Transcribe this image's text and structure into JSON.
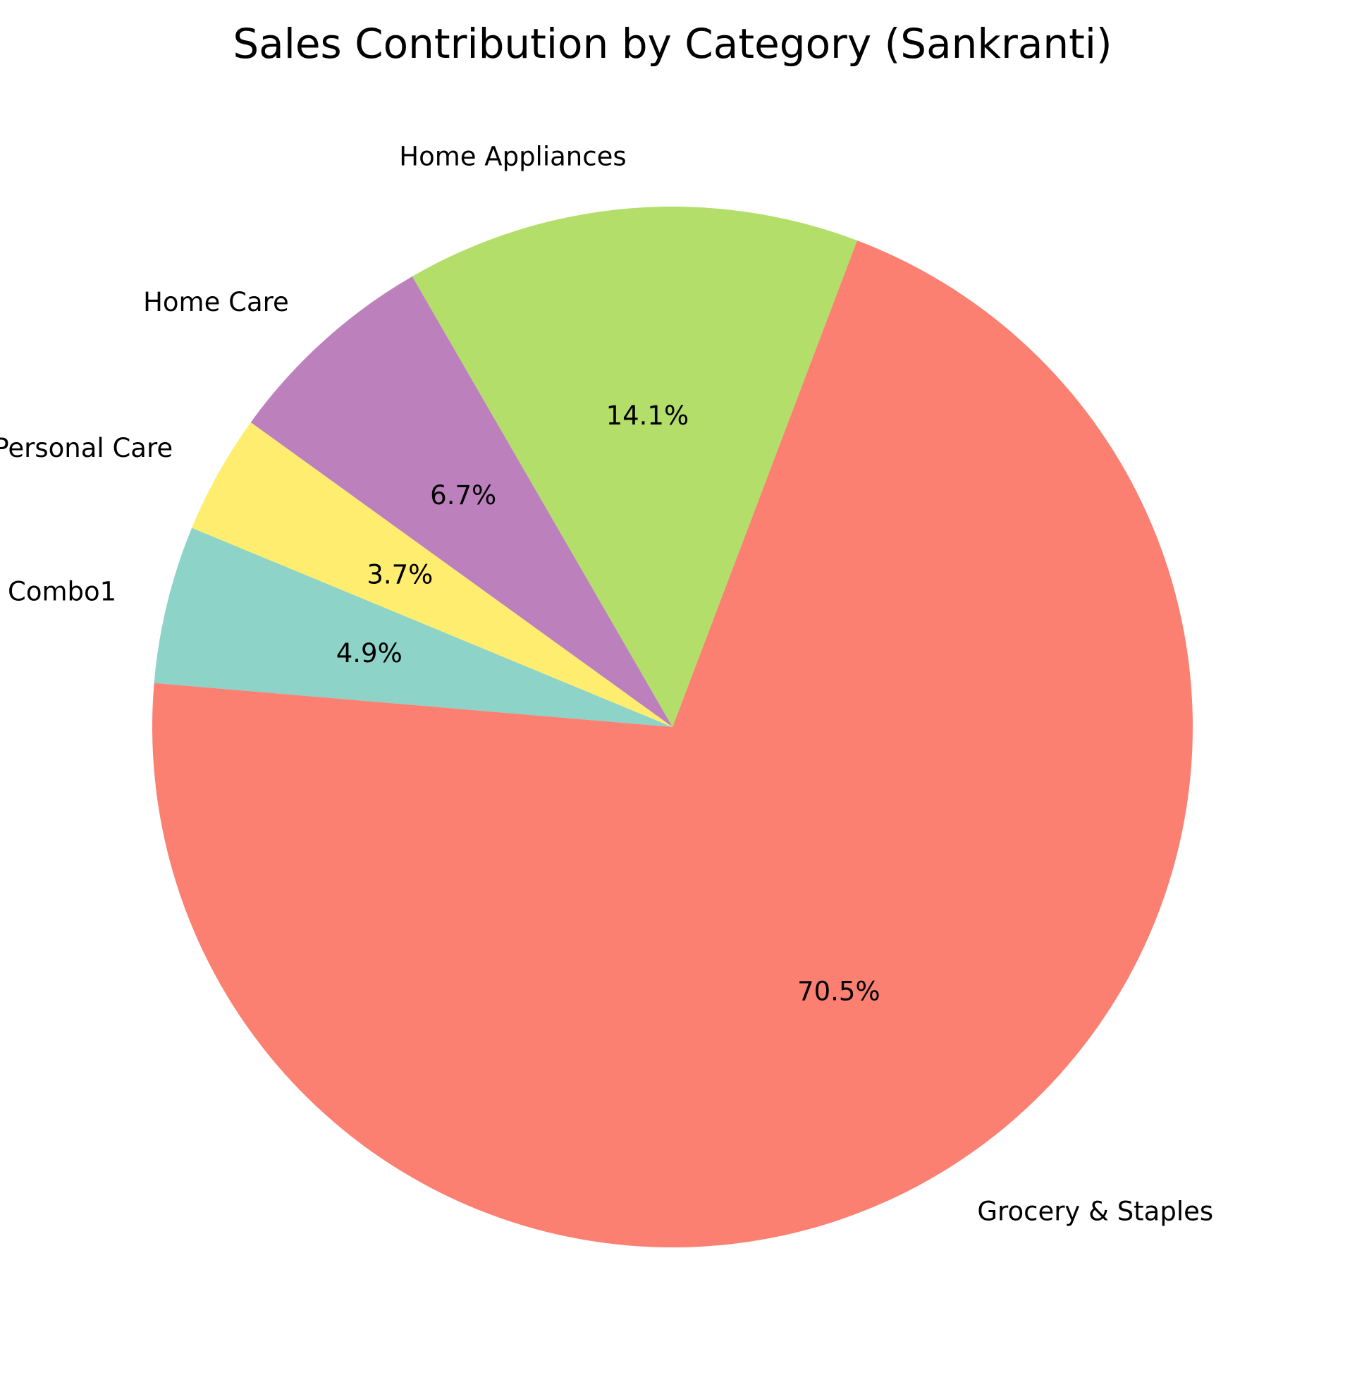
{
  "chart_data": {
    "type": "pie",
    "title": "Sales Contribution by Category (Sankranti)",
    "slices": [
      {
        "label": "Combo1",
        "value": 4.9,
        "pct_label": "4.9%",
        "color": "#8dd3c7"
      },
      {
        "label": "Grocery & Staples",
        "value": 70.5,
        "pct_label": "70.5%",
        "color": "#fb8072"
      },
      {
        "label": "Home Appliances",
        "value": 14.1,
        "pct_label": "14.1%",
        "color": "#b3de69"
      },
      {
        "label": "Home Care",
        "value": 6.7,
        "pct_label": "6.7%",
        "color": "#bc80bd"
      },
      {
        "label": "Personal Care",
        "value": 3.7,
        "pct_label": "3.7%",
        "color": "#ffed6f"
      }
    ],
    "start_angle_deg": 157.5,
    "direction": "counterclockwise",
    "legend": "none"
  }
}
